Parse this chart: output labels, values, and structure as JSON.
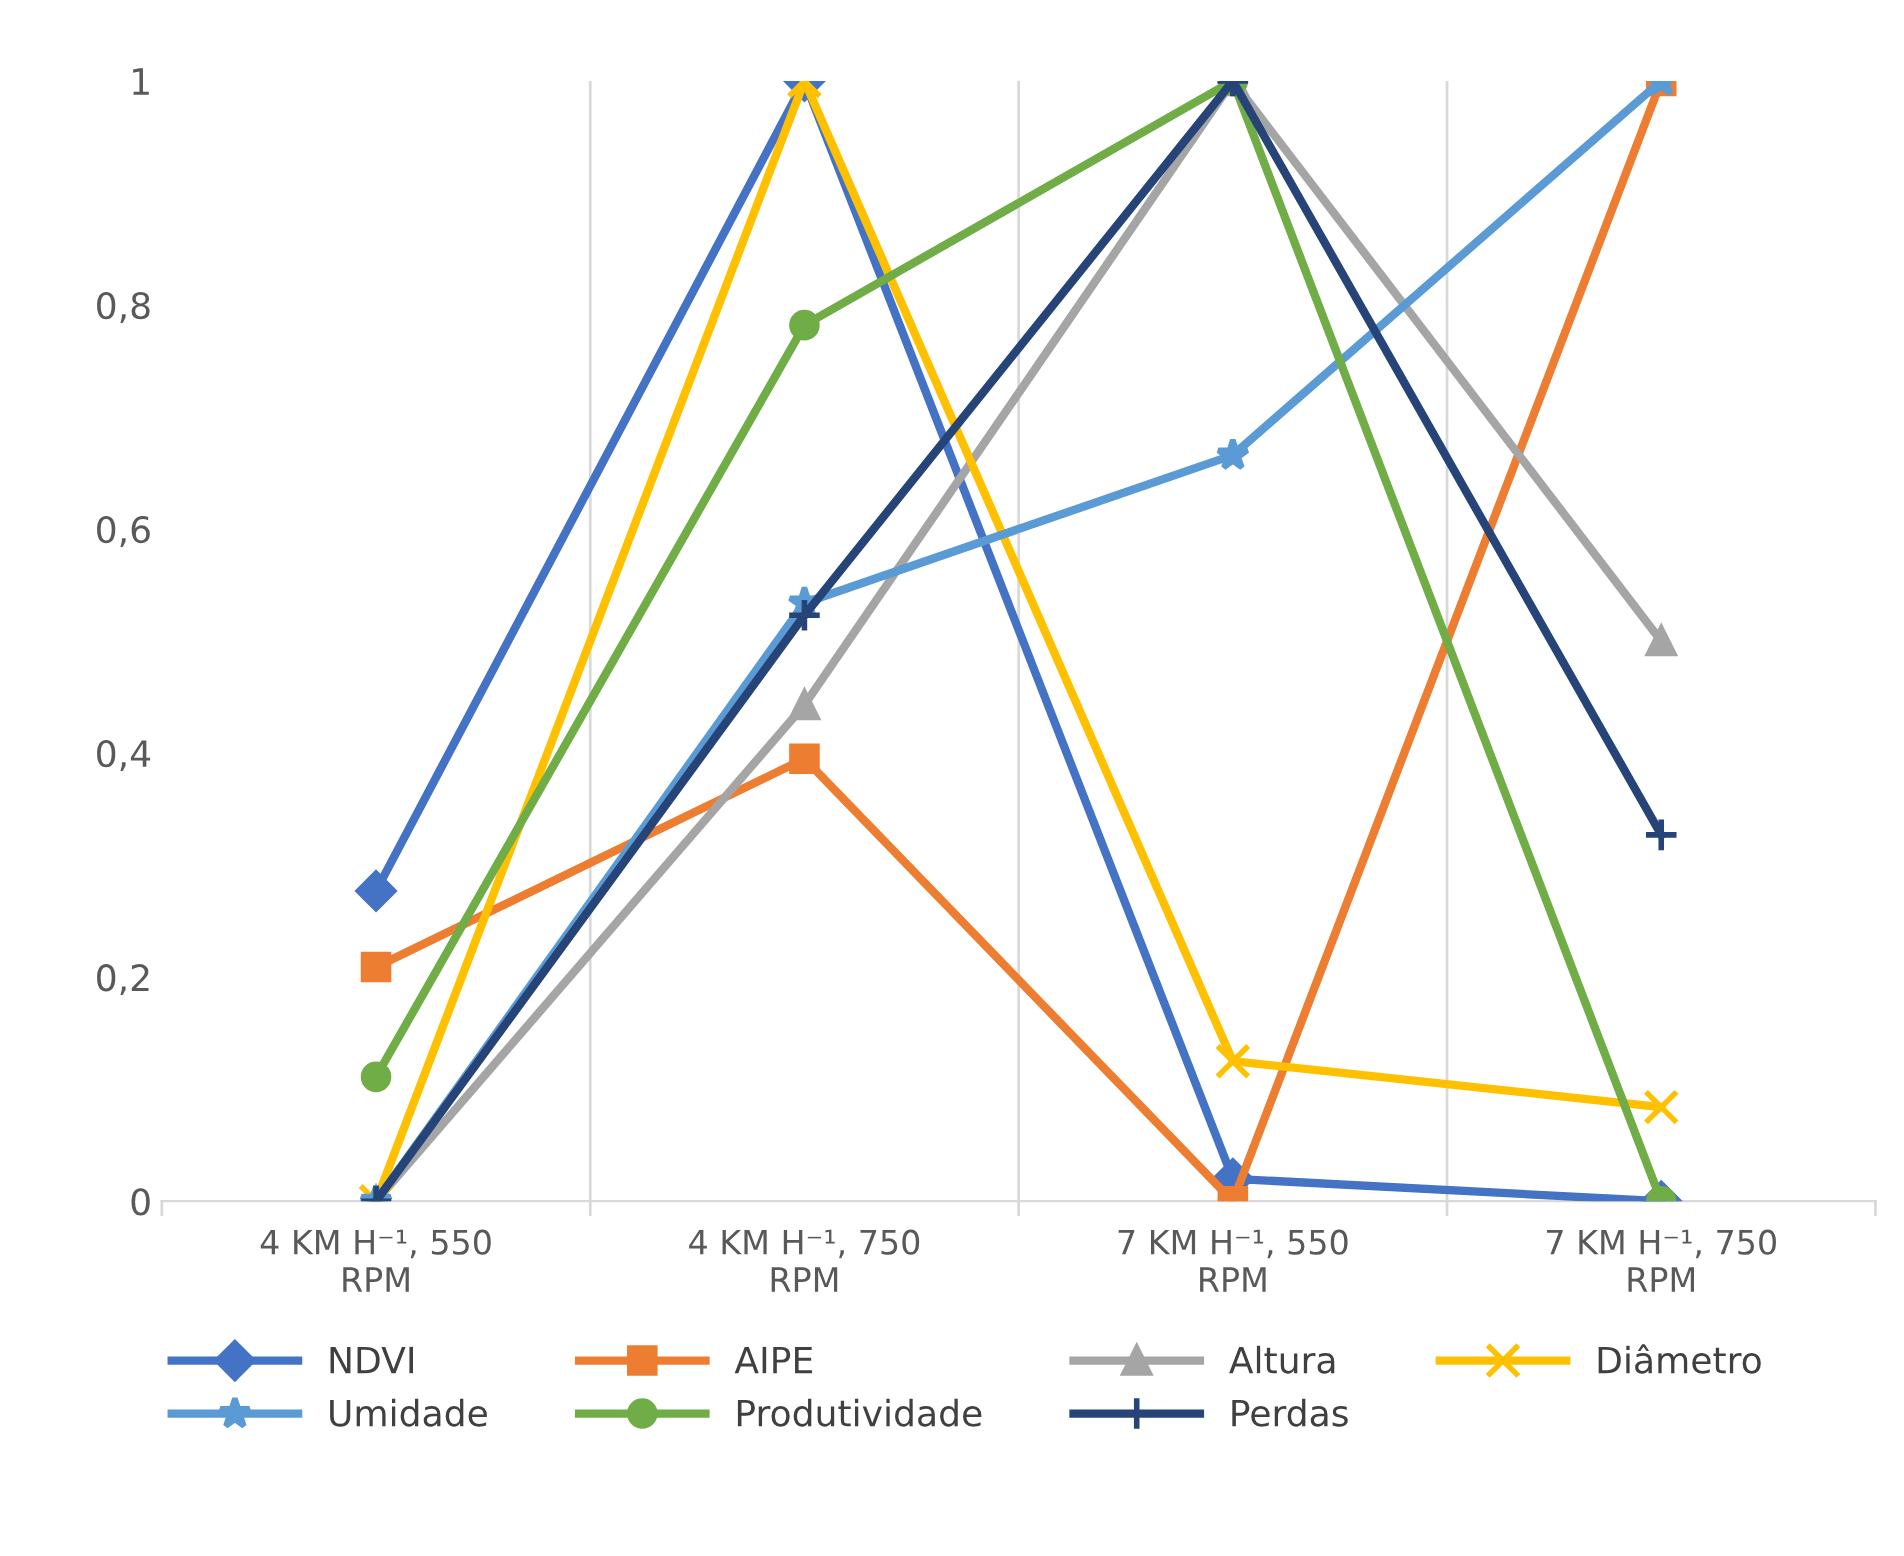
{
  "chart_data": {
    "type": "line",
    "categories": [
      "4 KM H⁻¹, 550 RPM",
      "4 KM H⁻¹, 750 RPM",
      "7 KM H⁻¹, 550 RPM",
      "7 KM H⁻¹, 750 RPM"
    ],
    "series": [
      {
        "name": "NDVI",
        "color": "#4472c4",
        "marker": "diamond",
        "values": [
          0.277,
          1,
          0.02,
          0
        ]
      },
      {
        "name": "AIPE",
        "color": "#ed7d31",
        "marker": "square",
        "values": [
          0.209,
          0.395,
          0,
          1
        ]
      },
      {
        "name": "Altura",
        "color": "#a5a5a5",
        "marker": "triangle",
        "values": [
          0,
          0.443,
          1,
          0.5
        ]
      },
      {
        "name": "Diâmetro",
        "color": "#ffc000",
        "marker": "cross",
        "values": [
          0,
          1,
          0.125,
          0.084
        ]
      },
      {
        "name": "Umidade",
        "color": "#5b9bd5",
        "marker": "star",
        "values": [
          0,
          0.534,
          0.666,
          1
        ]
      },
      {
        "name": "Produtividade",
        "color": "#70ad47",
        "marker": "circle",
        "values": [
          0.111,
          0.782,
          1,
          0
        ]
      },
      {
        "name": "Perdas",
        "color": "#264478",
        "marker": "plus",
        "values": [
          0,
          0.523,
          1,
          0.327
        ]
      }
    ],
    "ylim": [
      0,
      1
    ],
    "yticks": [
      0,
      {
        "value": 0.2,
        "label": "0,2"
      },
      {
        "value": 0.4,
        "label": "0,4"
      },
      {
        "value": 0.6,
        "label": "0,6"
      },
      {
        "value": 0.8,
        "label": "0,8"
      },
      1
    ],
    "grid": "x",
    "legend": "bottom",
    "line_style": "solid"
  }
}
